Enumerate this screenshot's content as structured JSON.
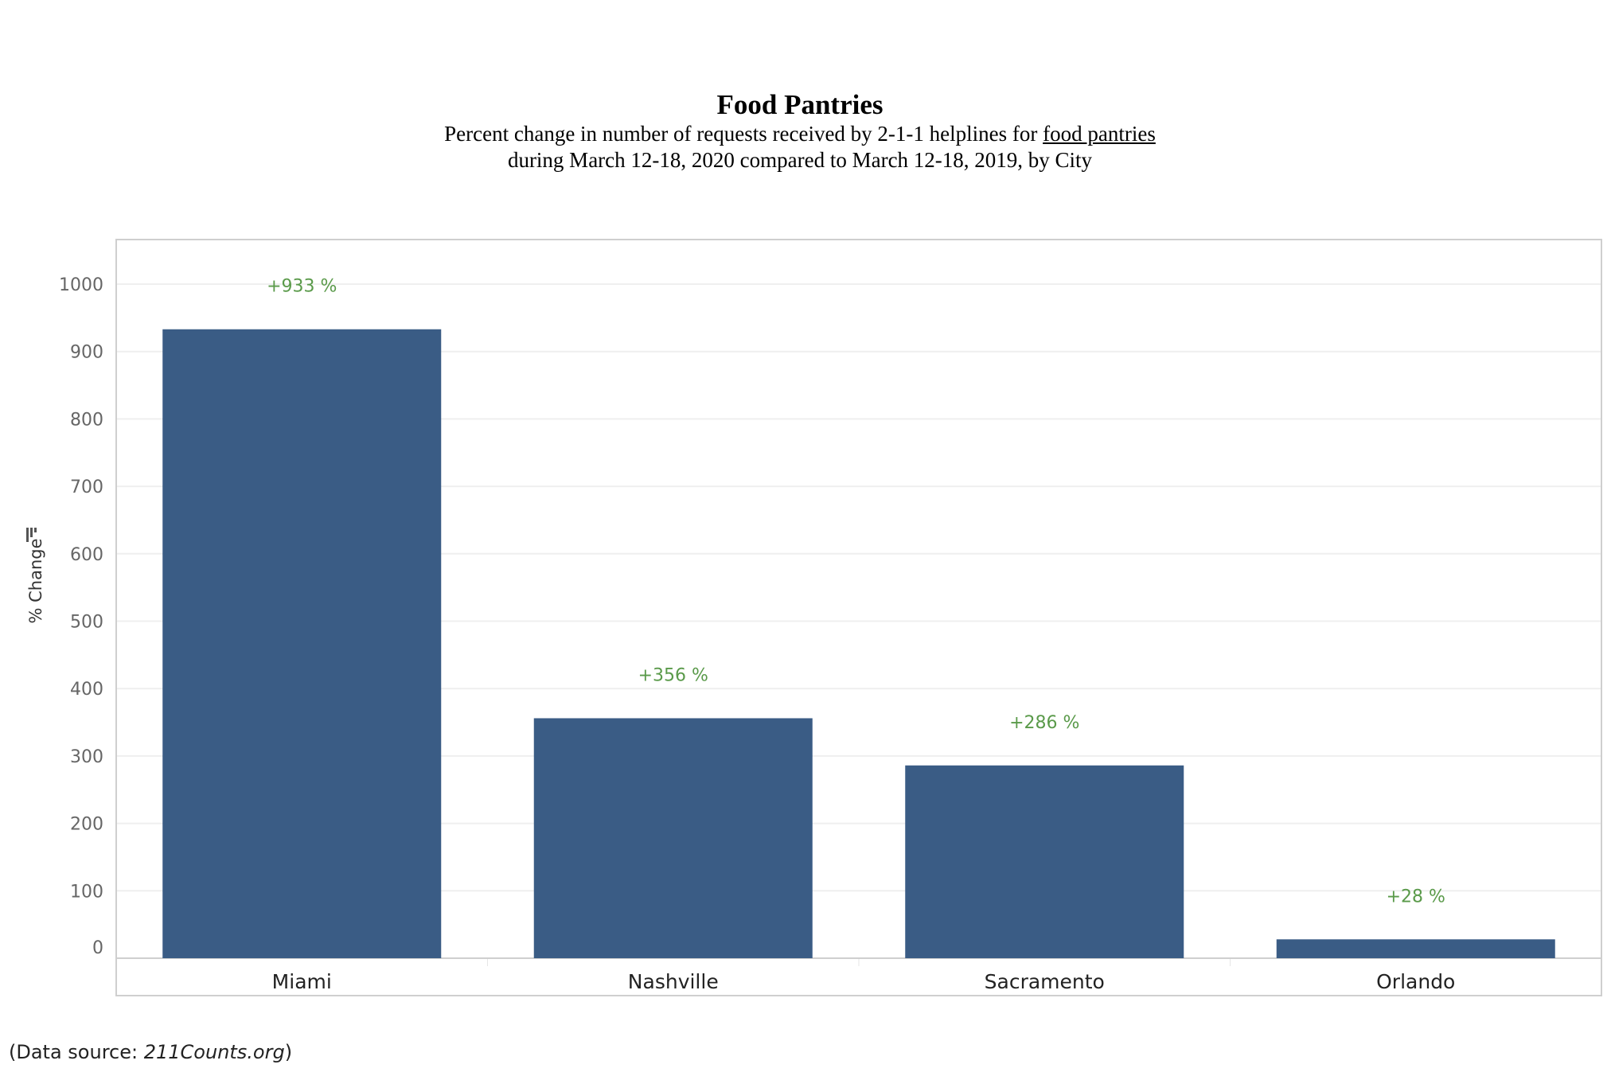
{
  "chart_data": {
    "type": "bar",
    "title": "Food Pantries",
    "subtitle_line1_prefix": "Percent change in number of requests received by 2-1-1 helplines for ",
    "subtitle_line1_link": "food pantries",
    "subtitle_line2": "during March 12-18, 2020 compared to March 12-18, 2019, by City",
    "categories": [
      "Miami",
      "Nashville",
      "Sacramento",
      "Orlando"
    ],
    "values": [
      933,
      356,
      286,
      28
    ],
    "data_labels": [
      "+933 %",
      "+356 %",
      "+286 %",
      "+28 %"
    ],
    "ylabel": "% Change",
    "ylim": [
      -20,
      1065
    ],
    "yticks": [
      0,
      100,
      200,
      300,
      400,
      500,
      600,
      700,
      800,
      900,
      1000
    ],
    "grid": true,
    "bar_color": "#3a5c85",
    "label_color": "#5a9a4a"
  },
  "footer": {
    "source_prefix": "(Data source: ",
    "source_name": "211Counts.org",
    "source_suffix": ")"
  }
}
